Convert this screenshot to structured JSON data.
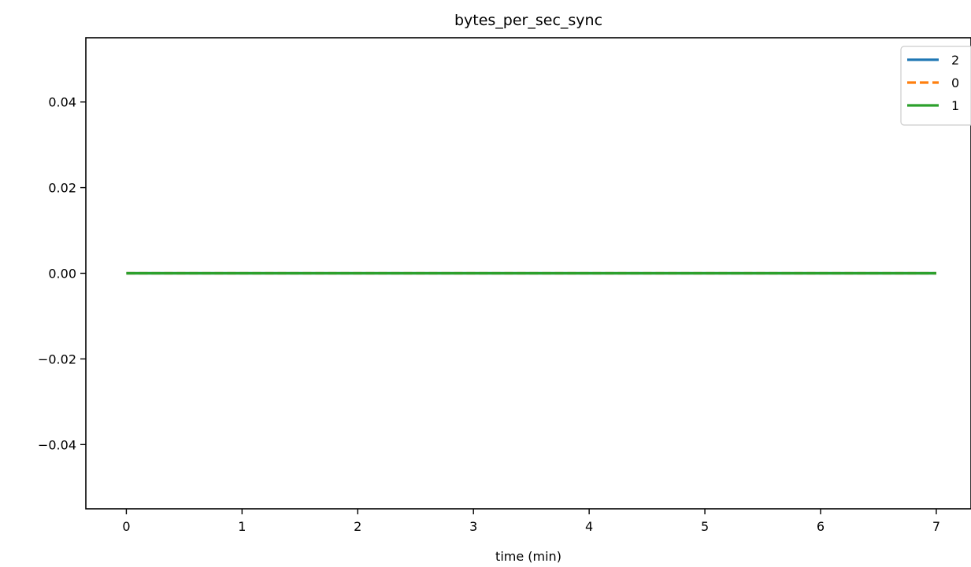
{
  "chart_data": {
    "type": "line",
    "title": "bytes_per_sec_sync",
    "xlabel": "time (min)",
    "ylabel": "",
    "xlim": [
      -0.35,
      7.3
    ],
    "ylim": [
      -0.055,
      0.055
    ],
    "x_ticks": [
      0,
      1,
      2,
      3,
      4,
      5,
      6,
      7
    ],
    "x_tick_labels": [
      "0",
      "1",
      "2",
      "3",
      "4",
      "5",
      "6",
      "7"
    ],
    "y_ticks": [
      0.04,
      0.02,
      0.0,
      -0.02,
      -0.04
    ],
    "y_tick_labels": [
      "0.04",
      "0.02",
      "0.00",
      "−0.02",
      "−0.04"
    ],
    "grid": false,
    "legend_position": "top-right",
    "series": [
      {
        "name": "2",
        "color": "#1f77b4",
        "dash": "solid",
        "x": [
          0,
          7
        ],
        "y": [
          0,
          0
        ]
      },
      {
        "name": "0",
        "color": "#ff7f0e",
        "dash": "dashed",
        "x": [
          0,
          7
        ],
        "y": [
          0,
          0
        ]
      },
      {
        "name": "1",
        "color": "#2ca02c",
        "dash": "solid",
        "x": [
          0,
          7
        ],
        "y": [
          0,
          0
        ]
      }
    ]
  }
}
